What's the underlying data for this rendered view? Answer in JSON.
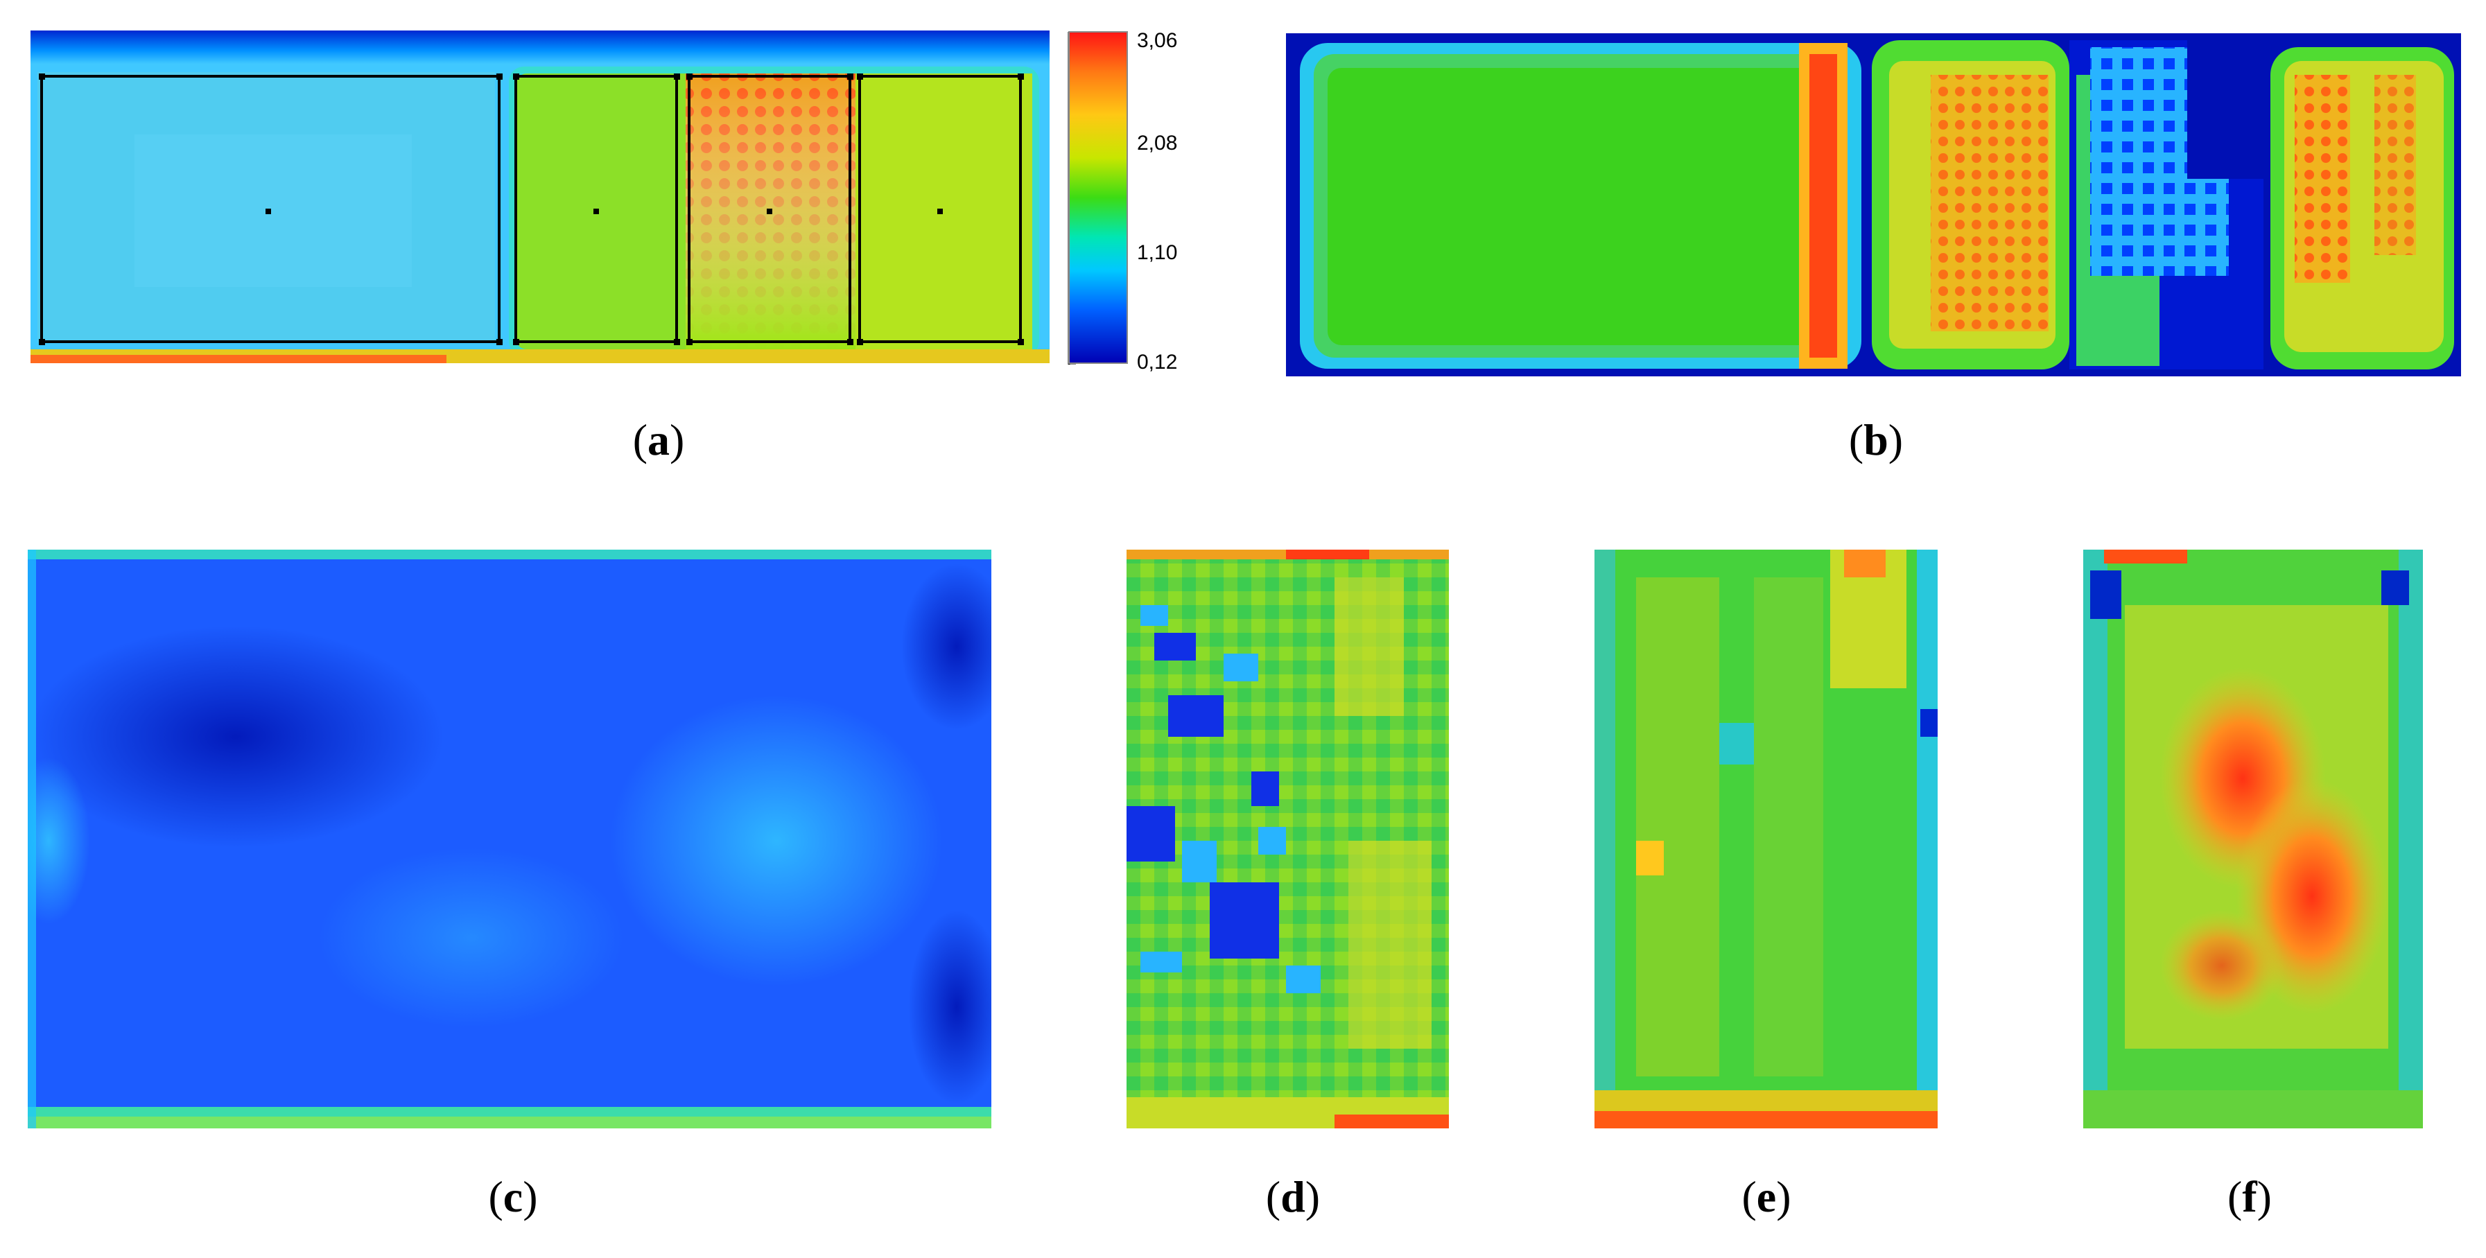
{
  "scale": {
    "labels": [
      "3,06",
      "2,08",
      "1,10",
      "0,12"
    ],
    "colors": [
      "#0000c8",
      "#0050ff",
      "#00b4ff",
      "#00e6c8",
      "#14d214",
      "#64dc00",
      "#c8e600",
      "#ffc800",
      "#ff7800",
      "#ff2814"
    ]
  },
  "captions": {
    "a": "a",
    "b": "b",
    "c": "c",
    "d": "d",
    "e": "e",
    "f": "f"
  }
}
